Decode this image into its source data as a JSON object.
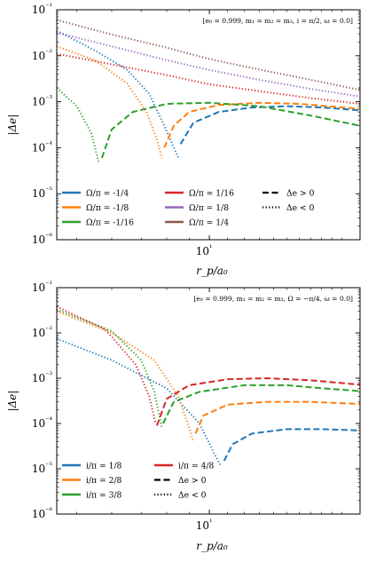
{
  "chart_data": [
    {
      "type": "line",
      "annotation": "[e₀ = 0.999, m₁ = m₂ = m₃, i = π/2, ω = 0.0]",
      "xlabel": "r_p/a₀",
      "ylabel": "|Δe|",
      "xscale": "log",
      "yscale": "log",
      "xlim": [
        4.5,
        22
      ],
      "ylim": [
        1e-06,
        0.1
      ],
      "x_tick_label": "10¹",
      "y_tick_labels": [
        "10⁻⁶",
        "10⁻⁵",
        "10⁻⁴",
        "10⁻³",
        "10⁻²",
        "10⁻¹"
      ],
      "legend_location": "lower-left",
      "legend": [
        {
          "label": "Ω/π = -1/4",
          "color": "#1f77b4",
          "style": "solid"
        },
        {
          "label": "Ω/π = -1/8",
          "color": "#ff7f0e",
          "style": "solid"
        },
        {
          "label": "Ω/π = -1/16",
          "color": "#2ca02c",
          "style": "solid"
        },
        {
          "label": "Ω/π = 1/16",
          "color": "#d62728",
          "style": "solid"
        },
        {
          "label": "Ω/π = 1/8",
          "color": "#9467bd",
          "style": "solid"
        },
        {
          "label": "Ω/π = 1/4",
          "color": "#8c564b",
          "style": "solid"
        },
        {
          "label": "Δe > 0",
          "color": "#000000",
          "style": "dashed"
        },
        {
          "label": "Δe < 0",
          "color": "#000000",
          "style": "dotted"
        }
      ],
      "series": [
        {
          "color": "#1f77b4",
          "segments": [
            {
              "style": "dotted",
              "points": [
                [
                  4.5,
                  0.035
                ],
                [
                  5.5,
                  0.013
                ],
                [
                  6.5,
                  0.005
                ],
                [
                  7.3,
                  0.0015
                ],
                [
                  7.9,
                  0.0003
                ],
                [
                  8.5,
                  6e-05
                ]
              ]
            },
            {
              "style": "dashed",
              "points": [
                [
                  8.6,
                  0.00012
                ],
                [
                  9.2,
                  0.00035
                ],
                [
                  10.5,
                  0.0006
                ],
                [
                  12.5,
                  0.00075
                ],
                [
                  15,
                  0.0008
                ],
                [
                  18,
                  0.00075
                ],
                [
                  22,
                  0.00065
                ]
              ]
            }
          ]
        },
        {
          "color": "#ff7f0e",
          "segments": [
            {
              "style": "dotted",
              "points": [
                [
                  4.5,
                  0.016
                ],
                [
                  5.5,
                  0.008
                ],
                [
                  6.5,
                  0.0025
                ],
                [
                  7.2,
                  0.0006
                ],
                [
                  7.6,
                  0.00015
                ],
                [
                  7.8,
                  6e-05
                ]
              ]
            },
            {
              "style": "dashed",
              "points": [
                [
                  7.9,
                  0.0001
                ],
                [
                  8.3,
                  0.0003
                ],
                [
                  9,
                  0.0006
                ],
                [
                  10.5,
                  0.00085
                ],
                [
                  13,
                  0.00095
                ],
                [
                  16,
                  0.0009
                ],
                [
                  22,
                  0.0007
                ]
              ]
            }
          ]
        },
        {
          "color": "#2ca02c",
          "segments": [
            {
              "style": "dotted",
              "points": [
                [
                  4.5,
                  0.002
                ],
                [
                  5.0,
                  0.0008
                ],
                [
                  5.4,
                  0.0002
                ],
                [
                  5.6,
                  5e-05
                ]
              ]
            },
            {
              "style": "dashed",
              "points": [
                [
                  5.7,
                  6e-05
                ],
                [
                  6.0,
                  0.00025
                ],
                [
                  6.7,
                  0.0006
                ],
                [
                  8,
                  0.0009
                ],
                [
                  10,
                  0.00095
                ],
                [
                  13,
                  0.0008
                ],
                [
                  17,
                  0.0005
                ],
                [
                  22,
                  0.0003
                ]
              ]
            }
          ]
        },
        {
          "color": "#d62728",
          "segments": [
            {
              "style": "dotted",
              "points": [
                [
                  4.5,
                  0.011
                ],
                [
                  6,
                  0.0065
                ],
                [
                  8,
                  0.0038
                ],
                [
                  10,
                  0.0024
                ],
                [
                  13,
                  0.0017
                ],
                [
                  17,
                  0.0012
                ],
                [
                  22,
                  0.0009
                ]
              ]
            }
          ]
        },
        {
          "color": "#9467bd",
          "segments": [
            {
              "style": "dotted",
              "points": [
                [
                  4.5,
                  0.032
                ],
                [
                  6,
                  0.016
                ],
                [
                  8,
                  0.008
                ],
                [
                  10,
                  0.0049
                ],
                [
                  13,
                  0.003
                ],
                [
                  17,
                  0.0019
                ],
                [
                  22,
                  0.0013
                ]
              ]
            }
          ]
        },
        {
          "color": "#8c564b",
          "segments": [
            {
              "style": "dotted",
              "points": [
                [
                  4.5,
                  0.06
                ],
                [
                  6,
                  0.029
                ],
                [
                  8,
                  0.015
                ],
                [
                  10,
                  0.0085
                ],
                [
                  13,
                  0.005
                ],
                [
                  17,
                  0.003
                ],
                [
                  22,
                  0.0018
                ]
              ]
            }
          ]
        }
      ]
    },
    {
      "type": "line",
      "annotation": "[e₀ = 0.999, m₁ = m₂ = m₃, Ω = −π/4, ω = 0.0]",
      "xlabel": "r_p/a₀",
      "ylabel": "|Δe|",
      "xscale": "log",
      "yscale": "log",
      "xlim": [
        4.5,
        22
      ],
      "ylim": [
        1e-06,
        0.1
      ],
      "x_tick_label": "10¹",
      "y_tick_labels": [
        "10⁻⁶",
        "10⁻⁵",
        "10⁻⁴",
        "10⁻³",
        "10⁻²",
        "10⁻¹"
      ],
      "legend_location": "lower-left",
      "legend": [
        {
          "label": "i/π = 1/8",
          "color": "#1f77b4",
          "style": "solid"
        },
        {
          "label": "i/π = 2/8",
          "color": "#ff7f0e",
          "style": "solid"
        },
        {
          "label": "i/π = 3/8",
          "color": "#2ca02c",
          "style": "solid"
        },
        {
          "label": "i/π = 4/8",
          "color": "#d62728",
          "style": "solid"
        },
        {
          "label": "Δe > 0",
          "color": "#000000",
          "style": "dashed"
        },
        {
          "label": "Δe < 0",
          "color": "#000000",
          "style": "dotted"
        }
      ],
      "series": [
        {
          "color": "#1f77b4",
          "segments": [
            {
              "style": "dotted",
              "points": [
                [
                  4.5,
                  0.0075
                ],
                [
                  6,
                  0.0025
                ],
                [
                  8,
                  0.0006
                ],
                [
                  9.5,
                  0.0001
                ],
                [
                  10.3,
                  2e-05
                ],
                [
                  10.6,
                  1.2e-05
                ]
              ]
            },
            {
              "style": "dashed",
              "points": [
                [
                  10.8,
                  1.5e-05
                ],
                [
                  11.3,
                  3.5e-05
                ],
                [
                  12.5,
                  6e-05
                ],
                [
                  15,
                  7.5e-05
                ],
                [
                  18,
                  7.5e-05
                ],
                [
                  22,
                  7e-05
                ]
              ]
            }
          ]
        },
        {
          "color": "#ff7f0e",
          "segments": [
            {
              "style": "dotted",
              "points": [
                [
                  4.5,
                  0.03
                ],
                [
                  6,
                  0.01
                ],
                [
                  7.5,
                  0.0025
                ],
                [
                  8.5,
                  0.0004
                ],
                [
                  9.0,
                  8e-05
                ],
                [
                  9.2,
                  4e-05
                ]
              ]
            },
            {
              "style": "dashed",
              "points": [
                [
                  9.3,
                  6e-05
                ],
                [
                  9.7,
                  0.00015
                ],
                [
                  11,
                  0.00026
                ],
                [
                  13.5,
                  0.0003
                ],
                [
                  17,
                  0.0003
                ],
                [
                  22,
                  0.00027
                ]
              ]
            }
          ]
        },
        {
          "color": "#2ca02c",
          "segments": [
            {
              "style": "dotted",
              "points": [
                [
                  4.5,
                  0.033
                ],
                [
                  6,
                  0.011
                ],
                [
                  7.0,
                  0.0025
                ],
                [
                  7.5,
                  0.0005
                ],
                [
                  7.8,
                  8e-05
                ]
              ]
            },
            {
              "style": "dashed",
              "points": [
                [
                  7.85,
                  0.0001
                ],
                [
                  8.3,
                  0.0003
                ],
                [
                  9.5,
                  0.0005
                ],
                [
                  12,
                  0.0007
                ],
                [
                  15,
                  0.0007
                ],
                [
                  18,
                  0.0006
                ],
                [
                  22,
                  0.00052
                ]
              ]
            }
          ]
        },
        {
          "color": "#d62728",
          "segments": [
            {
              "style": "dotted",
              "points": [
                [
                  4.5,
                  0.038
                ],
                [
                  5.8,
                  0.012
                ],
                [
                  6.8,
                  0.002
                ],
                [
                  7.3,
                  0.0004
                ],
                [
                  7.55,
                  0.0001
                ]
              ]
            },
            {
              "style": "dashed",
              "points": [
                [
                  7.6,
                  9e-05
                ],
                [
                  8.0,
                  0.00035
                ],
                [
                  9,
                  0.0007
                ],
                [
                  11,
                  0.00095
                ],
                [
                  13.5,
                  0.001
                ],
                [
                  17,
                  0.0009
                ],
                [
                  22,
                  0.00072
                ]
              ]
            }
          ]
        }
      ]
    }
  ]
}
